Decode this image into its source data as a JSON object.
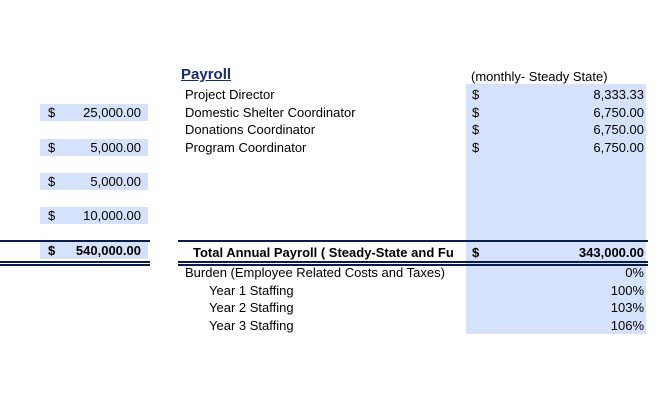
{
  "title": "Payroll",
  "period_note": "(monthly- Steady State)",
  "left_column": [
    {
      "currency": "$",
      "amount": "25,000.00"
    },
    {
      "currency": "$",
      "amount": "5,000.00"
    },
    {
      "currency": "$",
      "amount": "5,000.00"
    },
    {
      "currency": "$",
      "amount": "10,000.00"
    }
  ],
  "left_total": {
    "currency": "$",
    "amount": "540,000.00"
  },
  "positions": [
    {
      "label": "Project Director",
      "currency": "$",
      "amount": "8,333.33"
    },
    {
      "label": "Domestic Shelter Coordinator",
      "currency": "$",
      "amount": "6,750.00"
    },
    {
      "label": "Donations Coordinator",
      "currency": "$",
      "amount": "6,750.00"
    },
    {
      "label": "Program Coordinator",
      "currency": "$",
      "amount": "6,750.00"
    }
  ],
  "total": {
    "label": "Total Annual Payroll ( Steady-State and Fu",
    "currency": "$",
    "amount": "343,000.00"
  },
  "burden": [
    {
      "label": "Burden (Employee Related Costs and Taxes)",
      "value": "0%"
    },
    {
      "label": "Year 1 Staffing",
      "value": "100%"
    },
    {
      "label": "Year 2 Staffing",
      "value": "103%"
    },
    {
      "label": "Year 3 Staffing",
      "value": "106%"
    }
  ],
  "colors": {
    "cell_fill": "#d6e2fb",
    "title": "#1a2b6b",
    "rule": "#0b1a4f"
  }
}
